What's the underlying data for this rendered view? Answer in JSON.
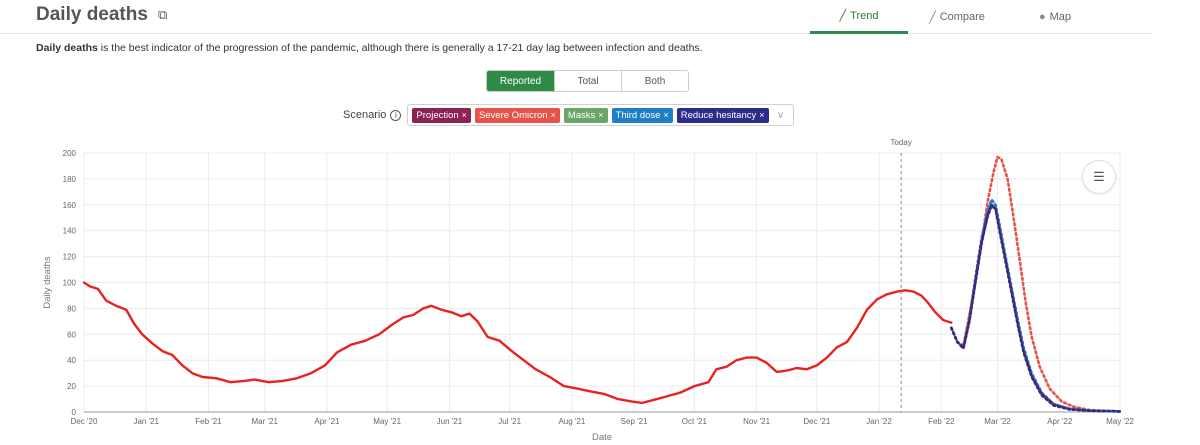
{
  "header": {
    "title": "Daily deaths",
    "tabs": [
      {
        "label": "Trend",
        "icon": "line-chart-icon",
        "active": true
      },
      {
        "label": "Compare",
        "icon": "compare-chart-icon",
        "active": false
      },
      {
        "label": "Map",
        "icon": "globe-icon",
        "active": false
      }
    ]
  },
  "description": {
    "bold": "Daily deaths",
    "rest": " is the best indicator of the progression of the pandemic, although there is generally a 17-21 day lag between infection and deaths."
  },
  "toggle": {
    "options": [
      "Reported",
      "Total",
      "Both"
    ],
    "selected": "Reported"
  },
  "scenario": {
    "label": "Scenario",
    "chips": [
      {
        "label": "Projection",
        "color": "#8b2252"
      },
      {
        "label": "Severe Omicron",
        "color": "#e5534b"
      },
      {
        "label": "Masks",
        "color": "#6aa56a"
      },
      {
        "label": "Third dose",
        "color": "#1f7fc4"
      },
      {
        "label": "Reduce hesitancy",
        "color": "#2c2c8c"
      }
    ],
    "chip_close": "×"
  },
  "chart_data": {
    "type": "line",
    "xlabel": "Date",
    "ylabel": "Daily deaths",
    "ylim": [
      0,
      200
    ],
    "yticks": [
      0,
      20,
      40,
      60,
      80,
      100,
      120,
      140,
      160,
      180,
      200
    ],
    "x_start": "2020-12-01",
    "x_end": "2022-05-01",
    "xticks": [
      {
        "date": "2020-12-01",
        "label": "Dec '20"
      },
      {
        "date": "2021-01-01",
        "label": "Jan '21"
      },
      {
        "date": "2021-02-01",
        "label": "Feb '21"
      },
      {
        "date": "2021-03-01",
        "label": "Mar '21"
      },
      {
        "date": "2021-04-01",
        "label": "Apr '21"
      },
      {
        "date": "2021-05-01",
        "label": "May '21"
      },
      {
        "date": "2021-06-01",
        "label": "Jun '21"
      },
      {
        "date": "2021-07-01",
        "label": "Jul '21"
      },
      {
        "date": "2021-08-01",
        "label": "Aug '21"
      },
      {
        "date": "2021-09-01",
        "label": "Sep '21"
      },
      {
        "date": "2021-10-01",
        "label": "Oct '21"
      },
      {
        "date": "2021-11-01",
        "label": "Nov '21"
      },
      {
        "date": "2021-12-01",
        "label": "Dec '21"
      },
      {
        "date": "2022-01-01",
        "label": "Jan '22"
      },
      {
        "date": "2022-02-01",
        "label": "Feb '22"
      },
      {
        "date": "2022-03-01",
        "label": "Mar '22"
      },
      {
        "date": "2022-04-01",
        "label": "Apr '22"
      },
      {
        "date": "2022-05-01",
        "label": "May '22"
      }
    ],
    "today": {
      "date": "2022-01-12",
      "label": "Today"
    },
    "grid": true,
    "series": [
      {
        "color": "#e8231f",
        "style": "solid",
        "points": [
          [
            "2020-12-01",
            100
          ],
          [
            "2020-12-04",
            97
          ],
          [
            "2020-12-08",
            95
          ],
          [
            "2020-12-12",
            86
          ],
          [
            "2020-12-17",
            82
          ],
          [
            "2020-12-22",
            79
          ],
          [
            "2020-12-26",
            68
          ],
          [
            "2020-12-30",
            60
          ],
          [
            "2021-01-04",
            53
          ],
          [
            "2021-01-09",
            47
          ],
          [
            "2021-01-14",
            44
          ],
          [
            "2021-01-19",
            36
          ],
          [
            "2021-01-24",
            30
          ],
          [
            "2021-01-29",
            27
          ],
          [
            "2021-02-05",
            26
          ],
          [
            "2021-02-12",
            23
          ],
          [
            "2021-02-19",
            24
          ],
          [
            "2021-02-24",
            25
          ],
          [
            "2021-03-03",
            23
          ],
          [
            "2021-03-10",
            24
          ],
          [
            "2021-03-17",
            26
          ],
          [
            "2021-03-24",
            30
          ],
          [
            "2021-03-31",
            36
          ],
          [
            "2021-04-06",
            46
          ],
          [
            "2021-04-13",
            52
          ],
          [
            "2021-04-20",
            55
          ],
          [
            "2021-04-27",
            60
          ],
          [
            "2021-05-04",
            68
          ],
          [
            "2021-05-09",
            73
          ],
          [
            "2021-05-14",
            75
          ],
          [
            "2021-05-19",
            80
          ],
          [
            "2021-05-23",
            82
          ],
          [
            "2021-05-28",
            79
          ],
          [
            "2021-06-02",
            77
          ],
          [
            "2021-06-07",
            74
          ],
          [
            "2021-06-11",
            76
          ],
          [
            "2021-06-15",
            70
          ],
          [
            "2021-06-20",
            58
          ],
          [
            "2021-06-26",
            55
          ],
          [
            "2021-07-02",
            47
          ],
          [
            "2021-07-08",
            40
          ],
          [
            "2021-07-14",
            33
          ],
          [
            "2021-07-21",
            27
          ],
          [
            "2021-07-28",
            20
          ],
          [
            "2021-08-04",
            18
          ],
          [
            "2021-08-10",
            16
          ],
          [
            "2021-08-17",
            14
          ],
          [
            "2021-08-24",
            10
          ],
          [
            "2021-08-31",
            8
          ],
          [
            "2021-09-05",
            7
          ],
          [
            "2021-09-10",
            9
          ],
          [
            "2021-09-17",
            12
          ],
          [
            "2021-09-24",
            15
          ],
          [
            "2021-10-01",
            20
          ],
          [
            "2021-10-08",
            23
          ],
          [
            "2021-10-12",
            33
          ],
          [
            "2021-10-17",
            35
          ],
          [
            "2021-10-22",
            40
          ],
          [
            "2021-10-27",
            42
          ],
          [
            "2021-11-01",
            42
          ],
          [
            "2021-11-06",
            38
          ],
          [
            "2021-11-11",
            31
          ],
          [
            "2021-11-16",
            32
          ],
          [
            "2021-11-21",
            34
          ],
          [
            "2021-11-26",
            33
          ],
          [
            "2021-12-01",
            36
          ],
          [
            "2021-12-06",
            42
          ],
          [
            "2021-12-11",
            50
          ],
          [
            "2021-12-16",
            54
          ],
          [
            "2021-12-21",
            65
          ],
          [
            "2021-12-26",
            79
          ],
          [
            "2021-12-31",
            87
          ],
          [
            "2022-01-05",
            91
          ],
          [
            "2022-01-10",
            93
          ],
          [
            "2022-01-14",
            94
          ],
          [
            "2022-01-18",
            93
          ],
          [
            "2022-01-22",
            90
          ],
          [
            "2022-01-25",
            85
          ],
          [
            "2022-01-29",
            77
          ],
          [
            "2022-02-02",
            71
          ],
          [
            "2022-02-06",
            69
          ]
        ]
      },
      {
        "name": "Severe Omicron",
        "color": "#e5534b",
        "style": "dotted",
        "points": [
          [
            "2022-02-06",
            65
          ],
          [
            "2022-02-09",
            54
          ],
          [
            "2022-02-12",
            51
          ],
          [
            "2022-02-15",
            75
          ],
          [
            "2022-02-18",
            100
          ],
          [
            "2022-02-21",
            130
          ],
          [
            "2022-02-24",
            162
          ],
          [
            "2022-02-27",
            185
          ],
          [
            "2022-03-01",
            197
          ],
          [
            "2022-03-03",
            195
          ],
          [
            "2022-03-06",
            180
          ],
          [
            "2022-03-09",
            150
          ],
          [
            "2022-03-12",
            118
          ],
          [
            "2022-03-15",
            85
          ],
          [
            "2022-03-18",
            58
          ],
          [
            "2022-03-22",
            35
          ],
          [
            "2022-03-27",
            18
          ],
          [
            "2022-04-02",
            8
          ],
          [
            "2022-04-08",
            4
          ],
          [
            "2022-04-16",
            1.5
          ],
          [
            "2022-05-01",
            0.5
          ]
        ]
      },
      {
        "name": "Masks",
        "color": "#6aa56a",
        "style": "dotted",
        "points": [
          [
            "2022-02-06",
            65
          ],
          [
            "2022-02-09",
            54
          ],
          [
            "2022-02-12",
            50
          ],
          [
            "2022-02-15",
            72
          ],
          [
            "2022-02-18",
            102
          ],
          [
            "2022-02-21",
            132
          ],
          [
            "2022-02-24",
            150
          ],
          [
            "2022-02-26",
            160
          ],
          [
            "2022-02-28",
            158
          ],
          [
            "2022-03-02",
            142
          ],
          [
            "2022-03-05",
            118
          ],
          [
            "2022-03-08",
            95
          ],
          [
            "2022-03-11",
            70
          ],
          [
            "2022-03-14",
            48
          ],
          [
            "2022-03-18",
            28
          ],
          [
            "2022-03-23",
            14
          ],
          [
            "2022-03-29",
            6
          ],
          [
            "2022-04-06",
            2.5
          ],
          [
            "2022-04-16",
            1
          ],
          [
            "2022-05-01",
            0.5
          ]
        ]
      },
      {
        "name": "Third dose",
        "color": "#1f7fc4",
        "style": "dotted",
        "points": [
          [
            "2022-02-06",
            65
          ],
          [
            "2022-02-09",
            54
          ],
          [
            "2022-02-12",
            50
          ],
          [
            "2022-02-15",
            72
          ],
          [
            "2022-02-18",
            104
          ],
          [
            "2022-02-21",
            134
          ],
          [
            "2022-02-24",
            155
          ],
          [
            "2022-02-26",
            164
          ],
          [
            "2022-02-28",
            160
          ],
          [
            "2022-03-02",
            145
          ],
          [
            "2022-03-05",
            120
          ],
          [
            "2022-03-08",
            96
          ],
          [
            "2022-03-11",
            72
          ],
          [
            "2022-03-14",
            50
          ],
          [
            "2022-03-18",
            30
          ],
          [
            "2022-03-23",
            15
          ],
          [
            "2022-03-29",
            6
          ],
          [
            "2022-04-06",
            2.5
          ],
          [
            "2022-04-16",
            1
          ],
          [
            "2022-05-01",
            0.5
          ]
        ]
      },
      {
        "name": "Reduce hesitancy",
        "color": "#2c2c8c",
        "style": "dotted",
        "points": [
          [
            "2022-02-06",
            65
          ],
          [
            "2022-02-09",
            54
          ],
          [
            "2022-02-12",
            49
          ],
          [
            "2022-02-15",
            70
          ],
          [
            "2022-02-18",
            100
          ],
          [
            "2022-02-21",
            130
          ],
          [
            "2022-02-24",
            152
          ],
          [
            "2022-02-26",
            160
          ],
          [
            "2022-02-28",
            157
          ],
          [
            "2022-03-02",
            140
          ],
          [
            "2022-03-05",
            116
          ],
          [
            "2022-03-08",
            92
          ],
          [
            "2022-03-11",
            68
          ],
          [
            "2022-03-14",
            46
          ],
          [
            "2022-03-18",
            27
          ],
          [
            "2022-03-23",
            13
          ],
          [
            "2022-03-29",
            5
          ],
          [
            "2022-04-06",
            2
          ],
          [
            "2022-04-16",
            1
          ],
          [
            "2022-05-01",
            0.5
          ]
        ]
      },
      {
        "name": "Projection",
        "color": "#8b2252",
        "style": "dotted",
        "points": [
          [
            "2022-02-06",
            65
          ],
          [
            "2022-02-09",
            54
          ],
          [
            "2022-02-12",
            50
          ],
          [
            "2022-02-15",
            71
          ],
          [
            "2022-02-18",
            101
          ],
          [
            "2022-02-21",
            131
          ],
          [
            "2022-02-24",
            151
          ],
          [
            "2022-02-26",
            159
          ],
          [
            "2022-02-28",
            157
          ],
          [
            "2022-03-02",
            141
          ],
          [
            "2022-03-05",
            117
          ],
          [
            "2022-03-08",
            93
          ],
          [
            "2022-03-11",
            69
          ],
          [
            "2022-03-14",
            47
          ],
          [
            "2022-03-18",
            28
          ],
          [
            "2022-03-23",
            14
          ],
          [
            "2022-03-29",
            6
          ],
          [
            "2022-04-06",
            2
          ],
          [
            "2022-04-16",
            1
          ],
          [
            "2022-05-01",
            0.5
          ]
        ]
      }
    ]
  }
}
